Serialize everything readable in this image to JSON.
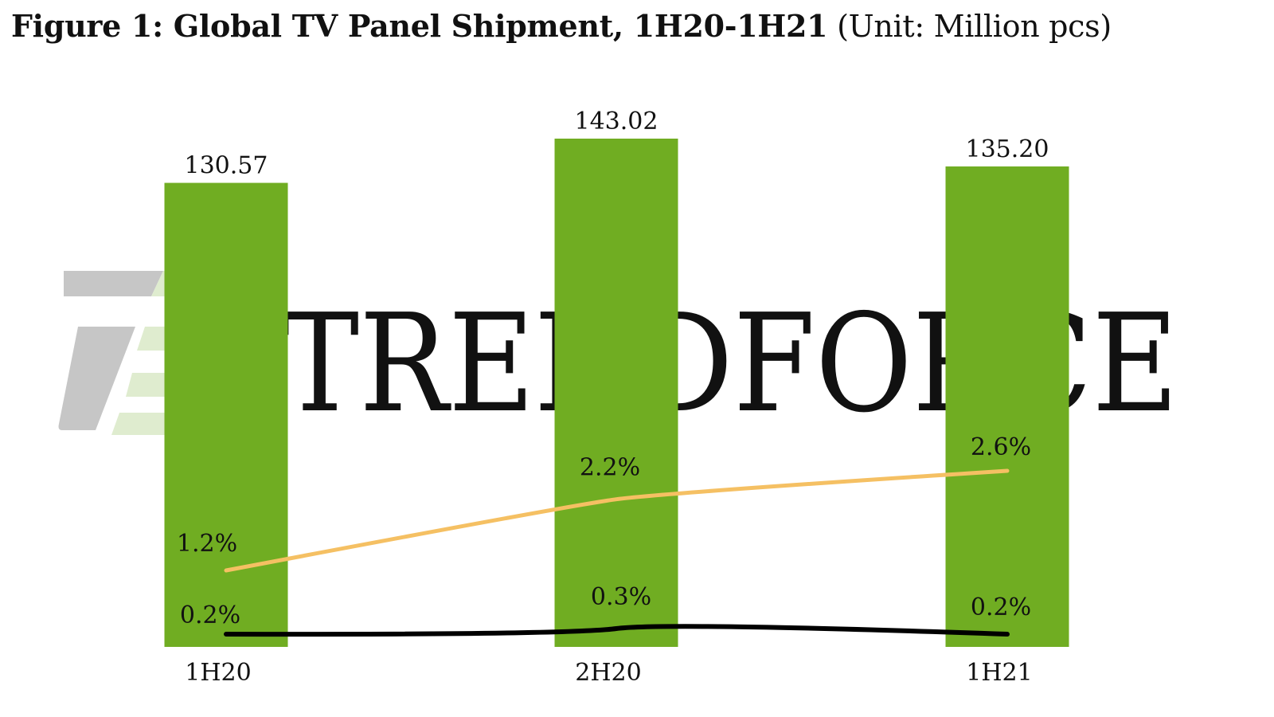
{
  "title_bold": "Figure 1: Global TV Panel Shipment, 1H20-1H21",
  "title_unit": "(Unit: Million pcs)",
  "watermark": {
    "text": "TRENDFORCE"
  },
  "colors": {
    "bar": "#70ad22",
    "line_upper": "#f5c063",
    "line_lower": "#000000",
    "watermark_gray": "#c6c6c6",
    "watermark_green": "#dfeccf"
  },
  "chart_data": {
    "type": "bar",
    "title": "Figure 1: Global TV Panel Shipment, 1H20-1H21",
    "categories": [
      "1H20",
      "2H20",
      "1H21"
    ],
    "values": [
      130.57,
      143.02,
      135.2
    ],
    "value_labels": [
      "130.57",
      "143.02",
      "135.20"
    ],
    "lines": [
      {
        "values": [
          1.2,
          2.2,
          2.6
        ],
        "labels": [
          "1.2%",
          "2.2%",
          "2.6%"
        ]
      },
      {
        "values": [
          0.2,
          0.3,
          0.2
        ],
        "labels": [
          "0.2%",
          "0.3%",
          "0.2%"
        ]
      }
    ],
    "grid": false
  }
}
